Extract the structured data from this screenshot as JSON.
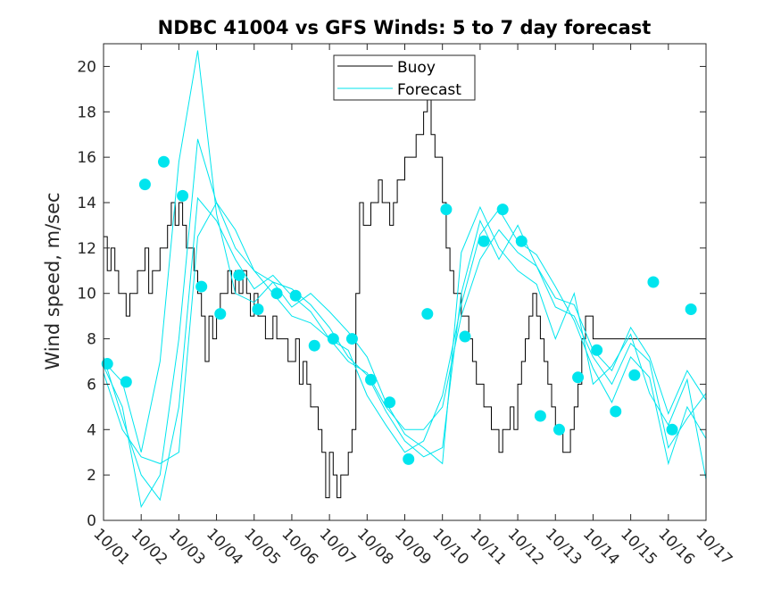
{
  "chart_data": {
    "type": "line",
    "title": "NDBC 41004 vs GFS Winds: 5 to 7 day forecast",
    "xlabel": "",
    "ylabel": "Wind speed, m/sec",
    "xlim": [
      0,
      16
    ],
    "ylim": [
      0,
      21
    ],
    "x_tick_labels": [
      "10/01",
      "10/02",
      "10/03",
      "10/04",
      "10/05",
      "10/06",
      "10/07",
      "10/08",
      "10/09",
      "10/10",
      "10/11",
      "10/12",
      "10/13",
      "10/14",
      "10/15",
      "10/16",
      "10/17"
    ],
    "y_ticks": [
      0,
      2,
      4,
      6,
      8,
      10,
      12,
      14,
      16,
      18,
      20
    ],
    "legend": {
      "position": "top-center",
      "entries": [
        {
          "label": "Buoy",
          "color": "#000000"
        },
        {
          "label": "Forecast",
          "color": "#00e5ee"
        }
      ]
    },
    "series": [
      {
        "name": "Buoy",
        "color": "#000000",
        "x": [
          0.0,
          0.1,
          0.2,
          0.3,
          0.4,
          0.5,
          0.6,
          0.7,
          0.8,
          0.9,
          1.0,
          1.1,
          1.2,
          1.3,
          1.4,
          1.5,
          1.6,
          1.7,
          1.8,
          1.9,
          2.0,
          2.1,
          2.2,
          2.3,
          2.4,
          2.5,
          2.6,
          2.7,
          2.8,
          2.9,
          3.0,
          3.1,
          3.2,
          3.3,
          3.4,
          3.5,
          3.6,
          3.7,
          3.8,
          3.9,
          4.0,
          4.1,
          4.2,
          4.3,
          4.4,
          4.5,
          4.6,
          4.7,
          4.8,
          4.9,
          5.0,
          5.1,
          5.2,
          5.3,
          5.4,
          5.5,
          5.6,
          5.7,
          5.8,
          5.9,
          6.0,
          6.1,
          6.2,
          6.3,
          6.4,
          6.5,
          6.6,
          6.7,
          6.8,
          6.9,
          7.0,
          7.1,
          7.2,
          7.3,
          7.4,
          7.5,
          7.6,
          7.7,
          7.8,
          7.9,
          8.0,
          8.1,
          8.2,
          8.3,
          8.4,
          8.5,
          8.6,
          8.7,
          8.8,
          8.9,
          9.0,
          9.1,
          9.2,
          9.3,
          9.4,
          9.5,
          9.6,
          9.7,
          9.8,
          9.9,
          10.0,
          10.1,
          10.2,
          10.3,
          10.4,
          10.5,
          10.6,
          10.7,
          10.8,
          10.9,
          11.0,
          11.1,
          11.2,
          11.3,
          11.4,
          11.5,
          11.6,
          11.7,
          11.8,
          11.9,
          12.0,
          12.1,
          12.2,
          12.3,
          12.4,
          12.5,
          12.6,
          12.7,
          12.8,
          12.9,
          13.0,
          13.1,
          13.2,
          13.3,
          13.4,
          13.5,
          13.6,
          13.7,
          13.8,
          13.9,
          14.0,
          14.1,
          14.2,
          14.3,
          14.4,
          14.5,
          14.6,
          14.7,
          14.8,
          14.9,
          15.0,
          15.1,
          15.2,
          15.3,
          15.4,
          15.5,
          15.6,
          15.7,
          15.8,
          15.9,
          16.0
        ],
        "values": [
          12.5,
          11,
          12,
          11,
          10,
          10,
          9,
          10,
          10,
          11,
          11,
          12,
          10,
          11,
          11,
          12,
          12,
          13,
          14,
          13,
          14,
          13,
          12,
          12,
          11,
          10,
          9,
          7,
          9,
          8,
          9,
          10,
          10,
          11,
          10,
          11,
          10,
          11,
          10,
          9,
          10,
          9,
          9,
          8,
          8,
          9,
          8,
          8,
          8,
          7,
          7,
          8,
          6,
          7,
          6,
          5,
          5,
          4,
          3,
          1,
          3,
          2,
          1,
          2,
          2,
          3,
          4,
          10,
          14,
          13,
          13,
          14,
          14,
          15,
          14,
          14,
          13,
          14,
          15,
          15,
          16,
          16,
          16,
          17,
          17,
          18,
          19,
          17,
          16,
          16,
          14,
          12,
          11,
          10,
          10,
          9,
          9,
          8,
          7,
          6,
          6,
          5,
          5,
          4,
          4,
          3,
          4,
          4,
          5,
          4,
          6,
          7,
          8,
          9,
          10,
          9,
          8,
          7,
          6,
          5,
          4,
          4,
          3,
          3,
          4,
          5,
          6,
          8,
          9,
          9,
          8,
          8,
          8,
          8,
          8,
          8,
          8,
          8,
          8,
          8,
          8,
          8,
          8,
          8,
          8,
          8,
          8,
          8,
          8,
          8,
          8,
          8,
          8,
          8,
          8,
          8,
          8,
          8,
          8,
          8,
          8
        ]
      },
      {
        "name": "Forecast run 1",
        "color": "#00e5ee",
        "x": [
          0,
          0.5,
          1,
          1.5,
          2,
          2.5,
          3,
          3.5,
          4,
          4.5,
          5,
          5.5,
          6,
          6.5,
          7,
          7.5,
          8,
          8.5,
          9,
          9.5,
          10,
          10.5,
          11,
          11.5,
          12,
          12.5,
          13,
          13.5,
          14,
          14.5,
          15,
          15.5,
          16
        ],
        "values": [
          7.0,
          6.1,
          3.0,
          7.0,
          15.8,
          20.7,
          13.5,
          10.0,
          9.6,
          10.5,
          9.4,
          10.0,
          9.2,
          8.3,
          7.2,
          5.2,
          3.8,
          3.2,
          2.5,
          11.8,
          13.8,
          12.0,
          11.0,
          10.4,
          8.0,
          10.0,
          6.0,
          6.8,
          8.2,
          5.6,
          4.2,
          6.2,
          1.8
        ]
      },
      {
        "name": "Forecast run 2",
        "color": "#00e5ee",
        "x": [
          0,
          0.5,
          1,
          1.5,
          2,
          2.5,
          3,
          3.5,
          4,
          4.5,
          5,
          5.5,
          6,
          6.5,
          7,
          7.5,
          8,
          8.5,
          9,
          9.5,
          10,
          10.5,
          11,
          11.5,
          12,
          12.5,
          13,
          13.5,
          14,
          14.5,
          15,
          15.5,
          16
        ],
        "values": [
          6.8,
          5.0,
          0.6,
          2.0,
          8.0,
          16.8,
          14.0,
          12.8,
          11.0,
          10.5,
          10.2,
          9.5,
          8.5,
          7.2,
          6.4,
          4.8,
          3.5,
          2.8,
          3.2,
          10.0,
          13.2,
          11.5,
          13.0,
          11.2,
          9.4,
          9.0,
          7.2,
          6.0,
          7.8,
          7.0,
          3.2,
          4.5,
          5.6
        ]
      },
      {
        "name": "Forecast run 3",
        "color": "#00e5ee",
        "x": [
          0,
          0.5,
          1,
          1.5,
          2,
          2.5,
          3,
          3.5,
          4,
          4.5,
          5,
          5.5,
          6,
          6.5,
          7,
          7.5,
          8,
          8.5,
          9,
          9.5,
          10,
          10.5,
          11,
          11.5,
          12,
          12.5,
          13,
          13.5,
          14,
          14.5,
          15,
          15.5,
          16
        ],
        "values": [
          7.2,
          4.5,
          2.0,
          0.9,
          5.0,
          14.2,
          13.2,
          11.5,
          10.2,
          10.8,
          9.9,
          9.2,
          8.0,
          7.5,
          5.5,
          4.2,
          3.0,
          3.5,
          5.5,
          9.5,
          12.6,
          13.7,
          12.3,
          11.7,
          10.3,
          8.8,
          6.7,
          5.2,
          7.2,
          6.3,
          2.5,
          5.0,
          3.6
        ]
      },
      {
        "name": "Forecast run 4",
        "color": "#00e5ee",
        "x": [
          0,
          0.5,
          1,
          1.5,
          2,
          2.5,
          3,
          3.5,
          4,
          4.5,
          5,
          5.5,
          6,
          6.5,
          7,
          7.5,
          8,
          8.5,
          9,
          9.5,
          10,
          10.5,
          11,
          11.5,
          12,
          12.5,
          13,
          13.5,
          14,
          14.5,
          15,
          15.5,
          16
        ],
        "values": [
          6.5,
          4.0,
          2.8,
          2.5,
          3.0,
          12.5,
          14.0,
          12.0,
          11.0,
          10.0,
          9.0,
          8.7,
          8.0,
          7.0,
          6.5,
          5.0,
          4.0,
          4.0,
          5.0,
          9.0,
          11.5,
          12.8,
          11.8,
          11.2,
          9.8,
          9.5,
          7.5,
          6.6,
          8.5,
          7.2,
          4.7,
          6.6,
          5.3
        ]
      }
    ],
    "markers": {
      "name": "Forecast markers",
      "color": "#00e5ee",
      "x": [
        0.1,
        0.6,
        1.1,
        1.6,
        2.1,
        2.6,
        3.1,
        3.6,
        4.1,
        4.6,
        5.1,
        5.6,
        6.1,
        6.6,
        7.1,
        7.6,
        8.1,
        8.6,
        9.1,
        9.6,
        10.1,
        10.6,
        11.1,
        11.6,
        12.1,
        12.6,
        13.1,
        13.6,
        14.1,
        14.6,
        15.1,
        15.6
      ],
      "values": [
        6.9,
        6.1,
        14.8,
        15.8,
        14.3,
        10.3,
        9.1,
        10.8,
        9.3,
        10.0,
        9.9,
        7.7,
        8.0,
        8.0,
        6.2,
        5.2,
        2.7,
        9.1,
        13.7,
        8.1,
        12.3,
        13.7,
        12.3,
        4.6,
        4.0,
        6.3,
        7.5,
        4.8,
        6.4,
        10.5,
        4.0,
        9.3
      ]
    }
  }
}
